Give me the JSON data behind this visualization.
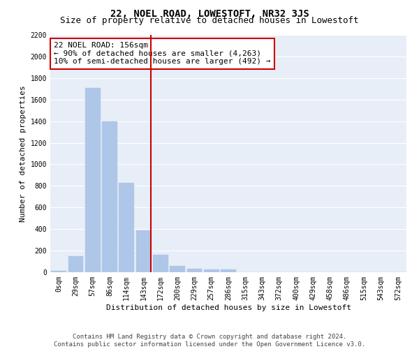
{
  "title": "22, NOEL ROAD, LOWESTOFT, NR32 3JS",
  "subtitle": "Size of property relative to detached houses in Lowestoft",
  "xlabel": "Distribution of detached houses by size in Lowestoft",
  "ylabel": "Number of detached properties",
  "bin_labels": [
    "0sqm",
    "29sqm",
    "57sqm",
    "86sqm",
    "114sqm",
    "143sqm",
    "172sqm",
    "200sqm",
    "229sqm",
    "257sqm",
    "286sqm",
    "315sqm",
    "343sqm",
    "372sqm",
    "400sqm",
    "429sqm",
    "458sqm",
    "486sqm",
    "515sqm",
    "543sqm",
    "572sqm"
  ],
  "bar_values": [
    15,
    150,
    1710,
    1400,
    830,
    390,
    165,
    60,
    30,
    25,
    25,
    0,
    0,
    0,
    0,
    0,
    0,
    0,
    0,
    0,
    0
  ],
  "bar_color": "#aec6e8",
  "bar_edgecolor": "#aec6e8",
  "annotation_text": "22 NOEL ROAD: 156sqm\n← 90% of detached houses are smaller (4,263)\n10% of semi-detached houses are larger (492) →",
  "annotation_box_color": "#cc0000",
  "vline_color": "#cc0000",
  "vline_x_index": 5.448,
  "ylim": [
    0,
    2200
  ],
  "yticks": [
    0,
    200,
    400,
    600,
    800,
    1000,
    1200,
    1400,
    1600,
    1800,
    2000,
    2200
  ],
  "background_color": "#e8eef7",
  "grid_color": "#ffffff",
  "footer_text": "Contains HM Land Registry data © Crown copyright and database right 2024.\nContains public sector information licensed under the Open Government Licence v3.0.",
  "title_fontsize": 10,
  "subtitle_fontsize": 9,
  "xlabel_fontsize": 8,
  "ylabel_fontsize": 8,
  "tick_fontsize": 7,
  "annotation_fontsize": 8,
  "footer_fontsize": 6.5
}
